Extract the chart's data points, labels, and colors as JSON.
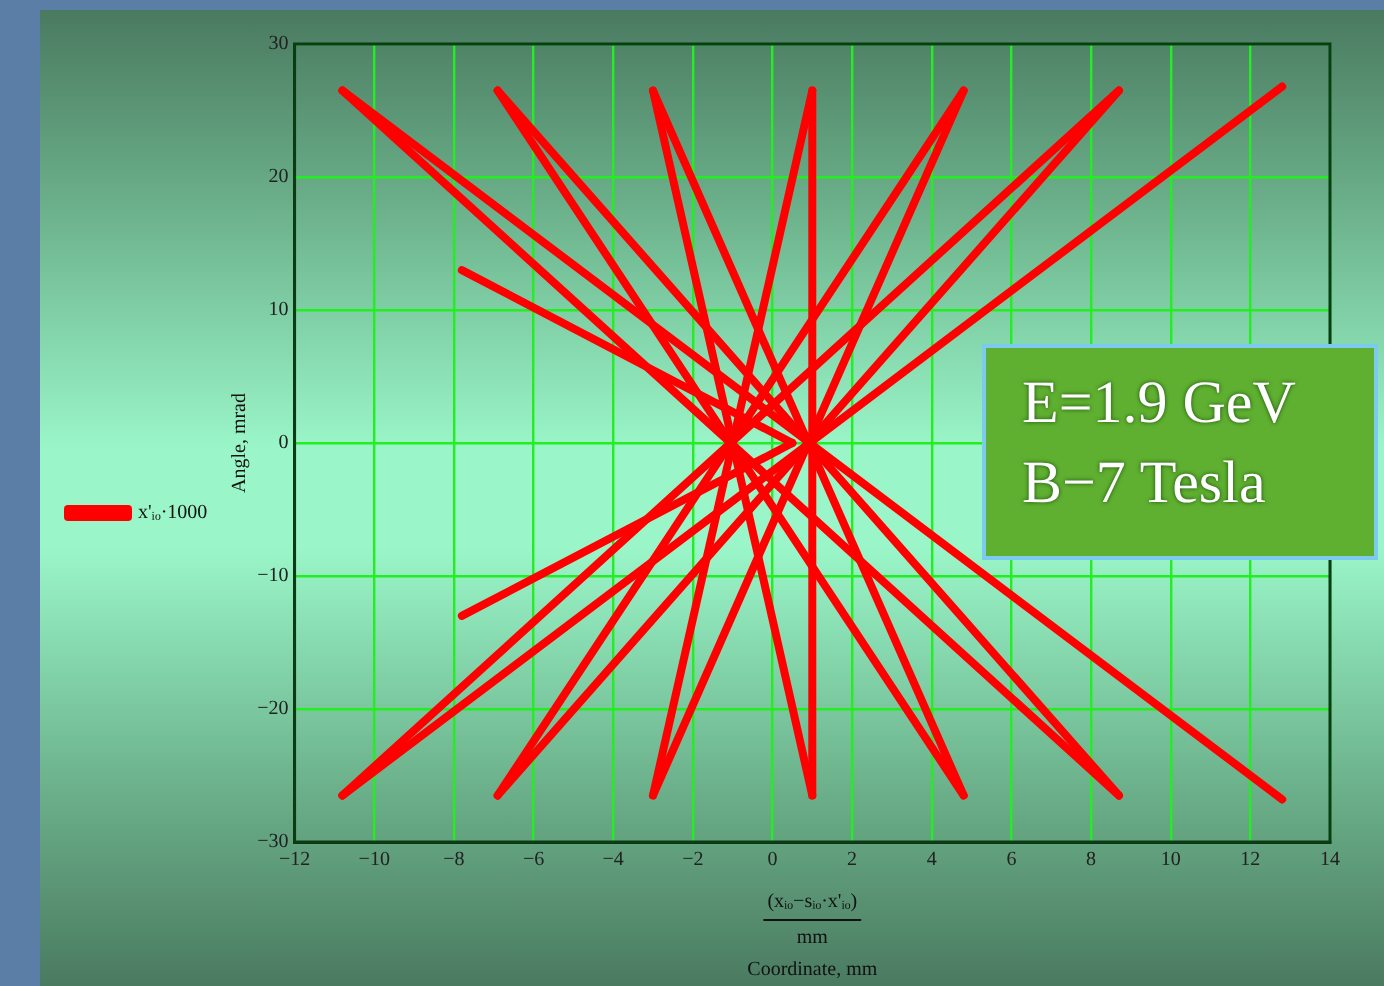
{
  "chart_data": {
    "type": "line",
    "xlabel": "Coordinate, mm",
    "ylabel": "Angle, mrad",
    "annotations": [
      "(xᵢₒ−sᵢₒ·x'ᵢₒ)",
      "mm",
      "E=1.9 GeV",
      "B−7 Tesla"
    ],
    "series": [
      {
        "name": "x'ᵢₒ·1000",
        "color": "#ff0000",
        "x": [
          -10.8,
          8.7
        ],
        "values": [
          26.5,
          -26.5
        ]
      },
      {
        "color": "#ff0000",
        "x": [
          -10.8,
          12.8
        ],
        "values": [
          26.5,
          -26.8
        ]
      },
      {
        "color": "#ff0000",
        "x": [
          -6.9,
          4.8
        ],
        "values": [
          26.5,
          -26.5
        ]
      },
      {
        "color": "#ff0000",
        "x": [
          -6.9,
          8.7
        ],
        "values": [
          26.5,
          -26.5
        ]
      },
      {
        "color": "#ff0000",
        "x": [
          -3,
          1
        ],
        "values": [
          26.5,
          -26.5
        ]
      },
      {
        "color": "#ff0000",
        "x": [
          -3,
          4.8
        ],
        "values": [
          26.5,
          -26.5
        ]
      },
      {
        "color": "#ff0000",
        "x": [
          1,
          -3
        ],
        "values": [
          26.5,
          -26.5
        ]
      },
      {
        "color": "#ff0000",
        "x": [
          1,
          1
        ],
        "values": [
          26.5,
          -26.5
        ]
      },
      {
        "color": "#ff0000",
        "x": [
          4.8,
          -6.9
        ],
        "values": [
          26.5,
          -26.5
        ]
      },
      {
        "color": "#ff0000",
        "x": [
          4.8,
          -3
        ],
        "values": [
          26.5,
          -26.5
        ]
      },
      {
        "color": "#ff0000",
        "x": [
          8.7,
          -10.8
        ],
        "values": [
          26.5,
          -26.5
        ]
      },
      {
        "color": "#ff0000",
        "x": [
          8.7,
          -6.9
        ],
        "values": [
          26.5,
          -26.5
        ]
      },
      {
        "color": "#ff0000",
        "x": [
          12.8,
          -10.8
        ],
        "values": [
          26.8,
          -26.5
        ]
      },
      {
        "color": "#ff0000",
        "x": [
          -7.8,
          0.5
        ],
        "values": [
          13,
          0
        ]
      },
      {
        "color": "#ff0000",
        "x": [
          -7.8,
          0.5
        ],
        "values": [
          -13,
          0
        ]
      }
    ],
    "xlim": [
      -12,
      14
    ],
    "xticks": [
      {
        "value": -12,
        "label": "−12"
      },
      {
        "value": -10,
        "label": "−10"
      },
      {
        "value": -8,
        "label": "−8"
      },
      {
        "value": -6,
        "label": "−6"
      },
      {
        "value": -4,
        "label": "−4"
      },
      {
        "value": -2,
        "label": "−2"
      },
      0,
      2,
      4,
      6,
      8,
      10,
      12,
      14
    ],
    "ylim": [
      -30,
      30
    ],
    "yticks": [
      {
        "value": -30,
        "label": "−30"
      },
      {
        "value": -20,
        "label": "−20"
      },
      {
        "value": -10,
        "label": "−10"
      },
      0,
      10,
      20,
      30
    ],
    "grid": true,
    "legend": "left",
    "marker": "none",
    "line_style": "solid"
  }
}
